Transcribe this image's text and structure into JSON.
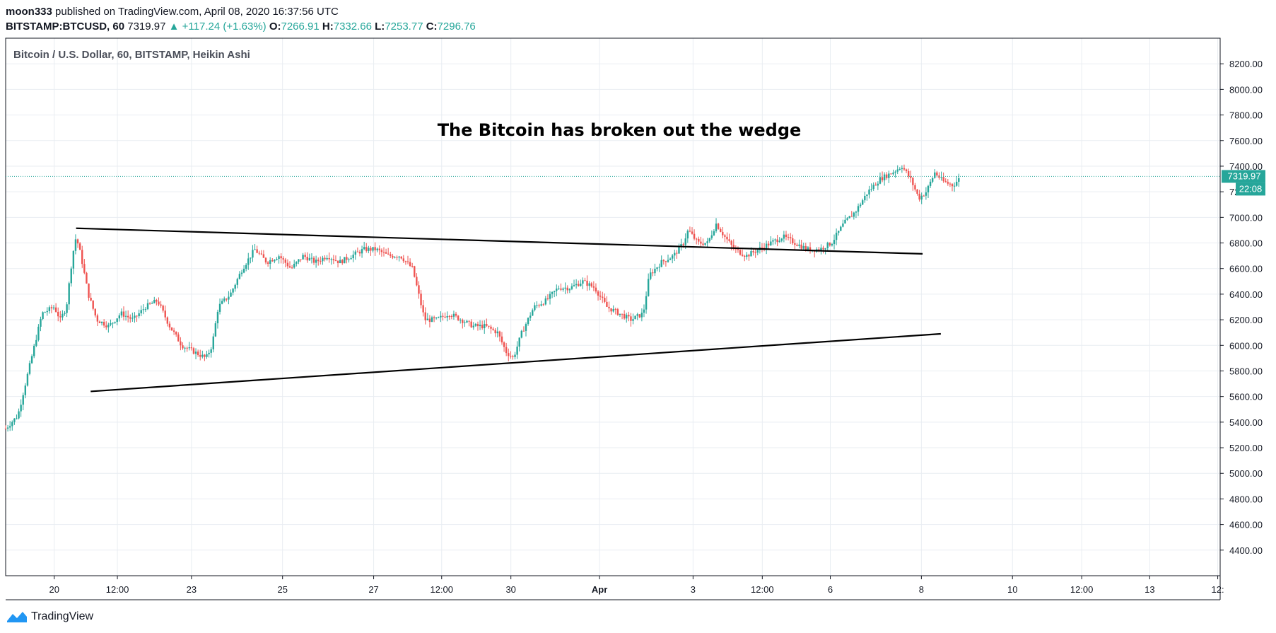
{
  "header": {
    "author": "moon333",
    "published_text": "published on TradingView.com, April 08, 2020 16:37:56 UTC",
    "symbol": "BITSTAMP:BTCUSD, 60",
    "last": "7319.97",
    "change": "+117.24 (+1.63%)",
    "open_label": "O:",
    "open": "7266.91",
    "high_label": "H:",
    "high": "7332.66",
    "low_label": "L:",
    "low": "7253.77",
    "close_label": "C:",
    "close": "7296.76"
  },
  "footer": {
    "brand": "TradingView"
  },
  "colors": {
    "up": "#26a69a",
    "down": "#ef5350",
    "grid": "#e9edf2",
    "line": "#000000"
  },
  "chart_data": {
    "type": "candlestick",
    "title": "Bitcoin / U.S. Dollar, 60, BITSTAMP, Heikin Ashi",
    "annotation": "The Bitcoin has broken out the wedge",
    "ylim": [
      4200,
      8400
    ],
    "yticks": [
      "8200.00",
      "8000.00",
      "7800.00",
      "7600.00",
      "7400.00",
      "7200.00",
      "7000.00",
      "6800.00",
      "6600.00",
      "6400.00",
      "6200.00",
      "6000.00",
      "5800.00",
      "5600.00",
      "5400.00",
      "5200.00",
      "5000.00",
      "4800.00",
      "4600.00",
      "4400.00"
    ],
    "ytick_values": [
      8200,
      8000,
      7800,
      7600,
      7400,
      7200,
      7000,
      6800,
      6600,
      6400,
      6200,
      6000,
      5800,
      5600,
      5400,
      5200,
      5000,
      4800,
      4600,
      4400
    ],
    "xticks": [
      "20",
      "12:00",
      "23",
      "25",
      "27",
      "12:00",
      "30",
      "Apr",
      "3",
      "12:00",
      "6",
      "8",
      "10",
      "12:00",
      "13",
      "12:"
    ],
    "xtick_pos": [
      0.04,
      0.092,
      0.153,
      0.228,
      0.303,
      0.359,
      0.416,
      0.489,
      0.566,
      0.623,
      0.679,
      0.754,
      0.829,
      0.886,
      0.942,
      0.998
    ],
    "last_price": "7319.97",
    "countdown": "22:08",
    "last_value": 7319.97,
    "price_path": [
      [
        0.0,
        5350
      ],
      [
        0.01,
        5450
      ],
      [
        0.02,
        5850
      ],
      [
        0.03,
        6250
      ],
      [
        0.04,
        6300
      ],
      [
        0.045,
        6200
      ],
      [
        0.05,
        6300
      ],
      [
        0.055,
        6700
      ],
      [
        0.058,
        6850
      ],
      [
        0.062,
        6700
      ],
      [
        0.068,
        6400
      ],
      [
        0.075,
        6200
      ],
      [
        0.085,
        6150
      ],
      [
        0.095,
        6250
      ],
      [
        0.105,
        6200
      ],
      [
        0.115,
        6300
      ],
      [
        0.125,
        6350
      ],
      [
        0.135,
        6150
      ],
      [
        0.145,
        6000
      ],
      [
        0.155,
        5950
      ],
      [
        0.165,
        5900
      ],
      [
        0.17,
        6000
      ],
      [
        0.175,
        6300
      ],
      [
        0.185,
        6400
      ],
      [
        0.195,
        6600
      ],
      [
        0.205,
        6750
      ],
      [
        0.215,
        6650
      ],
      [
        0.225,
        6700
      ],
      [
        0.235,
        6600
      ],
      [
        0.245,
        6700
      ],
      [
        0.255,
        6650
      ],
      [
        0.265,
        6700
      ],
      [
        0.275,
        6650
      ],
      [
        0.285,
        6700
      ],
      [
        0.295,
        6750
      ],
      [
        0.305,
        6750
      ],
      [
        0.315,
        6700
      ],
      [
        0.325,
        6700
      ],
      [
        0.335,
        6600
      ],
      [
        0.345,
        6200
      ],
      [
        0.355,
        6200
      ],
      [
        0.365,
        6250
      ],
      [
        0.375,
        6200
      ],
      [
        0.385,
        6150
      ],
      [
        0.395,
        6150
      ],
      [
        0.405,
        6100
      ],
      [
        0.412,
        5950
      ],
      [
        0.418,
        5900
      ],
      [
        0.425,
        6100
      ],
      [
        0.435,
        6300
      ],
      [
        0.445,
        6350
      ],
      [
        0.455,
        6450
      ],
      [
        0.465,
        6450
      ],
      [
        0.475,
        6500
      ],
      [
        0.485,
        6450
      ],
      [
        0.495,
        6300
      ],
      [
        0.505,
        6250
      ],
      [
        0.515,
        6200
      ],
      [
        0.525,
        6250
      ],
      [
        0.53,
        6550
      ],
      [
        0.54,
        6650
      ],
      [
        0.55,
        6700
      ],
      [
        0.558,
        6800
      ],
      [
        0.562,
        6900
      ],
      [
        0.57,
        6800
      ],
      [
        0.578,
        6800
      ],
      [
        0.585,
        6950
      ],
      [
        0.592,
        6850
      ],
      [
        0.6,
        6750
      ],
      [
        0.61,
        6700
      ],
      [
        0.62,
        6750
      ],
      [
        0.63,
        6800
      ],
      [
        0.64,
        6850
      ],
      [
        0.65,
        6800
      ],
      [
        0.66,
        6750
      ],
      [
        0.67,
        6750
      ],
      [
        0.68,
        6800
      ],
      [
        0.69,
        6950
      ],
      [
        0.7,
        7050
      ],
      [
        0.71,
        7200
      ],
      [
        0.72,
        7300
      ],
      [
        0.73,
        7350
      ],
      [
        0.738,
        7400
      ],
      [
        0.745,
        7300
      ],
      [
        0.752,
        7150
      ],
      [
        0.758,
        7200
      ],
      [
        0.765,
        7350
      ],
      [
        0.772,
        7280
      ],
      [
        0.78,
        7250
      ],
      [
        0.785,
        7300
      ]
    ],
    "trendlines": [
      {
        "from": [
          0.058,
          6915
        ],
        "to": [
          0.755,
          6715
        ]
      },
      {
        "from": [
          0.07,
          5640
        ],
        "to": [
          0.77,
          6090
        ]
      }
    ]
  }
}
